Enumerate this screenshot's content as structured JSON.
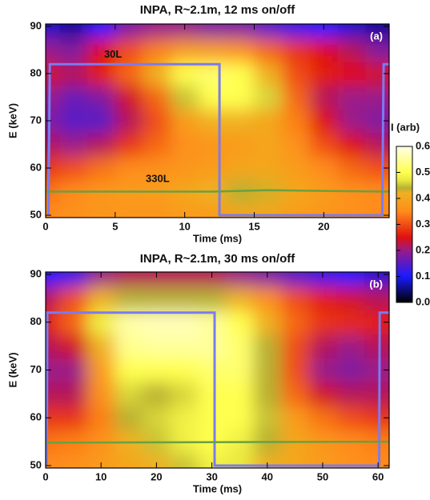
{
  "chart_data": [
    {
      "type": "heatmap",
      "title": "INPA, R~2.1m, 12 ms on/off",
      "panel_label": "(a)",
      "xlabel": "Time (ms)",
      "ylabel": "E (keV)",
      "xlim": [
        0,
        24.7
      ],
      "ylim": [
        49.5,
        90.5
      ],
      "xticks": [
        0,
        5,
        10,
        15,
        20
      ],
      "yticks": [
        50,
        60,
        70,
        80,
        90
      ],
      "x": [
        0,
        2,
        4,
        6,
        8,
        10,
        12,
        14,
        16,
        18,
        20,
        22,
        24
      ],
      "y": [
        50,
        55,
        60,
        65,
        70,
        75,
        80,
        85,
        90
      ],
      "z": [
        [
          0.35,
          0.36,
          0.37,
          0.37,
          0.37,
          0.38,
          0.38,
          0.4,
          0.4,
          0.38,
          0.37,
          0.36,
          0.35
        ],
        [
          0.33,
          0.35,
          0.37,
          0.38,
          0.38,
          0.4,
          0.42,
          0.44,
          0.43,
          0.4,
          0.38,
          0.36,
          0.35
        ],
        [
          0.28,
          0.3,
          0.33,
          0.35,
          0.36,
          0.37,
          0.38,
          0.4,
          0.4,
          0.38,
          0.35,
          0.32,
          0.3
        ],
        [
          0.22,
          0.2,
          0.22,
          0.28,
          0.32,
          0.36,
          0.37,
          0.38,
          0.4,
          0.36,
          0.3,
          0.25,
          0.22
        ],
        [
          0.18,
          0.15,
          0.15,
          0.22,
          0.3,
          0.38,
          0.42,
          0.42,
          0.4,
          0.34,
          0.25,
          0.2,
          0.18
        ],
        [
          0.2,
          0.16,
          0.18,
          0.24,
          0.32,
          0.45,
          0.5,
          0.5,
          0.46,
          0.32,
          0.22,
          0.2,
          0.2
        ],
        [
          0.24,
          0.22,
          0.26,
          0.32,
          0.42,
          0.5,
          0.52,
          0.5,
          0.42,
          0.3,
          0.26,
          0.25,
          0.24
        ],
        [
          0.2,
          0.18,
          0.25,
          0.3,
          0.34,
          0.38,
          0.38,
          0.36,
          0.32,
          0.28,
          0.25,
          0.22,
          0.18
        ],
        [
          0.08,
          0.06,
          0.1,
          0.18,
          0.2,
          0.2,
          0.18,
          0.18,
          0.15,
          0.12,
          0.1,
          0.08,
          0.06
        ]
      ],
      "series": [
        {
          "name": "30L",
          "color": "#7b7bf0",
          "x": [
            0.2,
            0.3,
            12.5,
            12.5,
            24.2,
            24.3,
            24.7
          ],
          "y": [
            50,
            82,
            82,
            50,
            50,
            82,
            82
          ]
        },
        {
          "name": "330L",
          "color": "#6aa040",
          "x": [
            0,
            12,
            16,
            24.7
          ],
          "y": [
            55,
            55,
            55.3,
            55
          ]
        }
      ],
      "colorbar": {
        "label": "I (arb)",
        "lim": [
          0,
          0.6
        ],
        "ticks": [
          {
            "value": 0,
            "label": "0.0"
          },
          0.1,
          0.2,
          0.3,
          0.4,
          0.5,
          0.6
        ],
        "colormap": [
          [
            0,
            "#000000"
          ],
          [
            0.1,
            "#1a1aff"
          ],
          [
            0.2,
            "#9a1a8a"
          ],
          [
            0.25,
            "#e01010"
          ],
          [
            0.35,
            "#ff8c1a"
          ],
          [
            0.42,
            "#f0b020"
          ],
          [
            0.44,
            "#b8b030"
          ],
          [
            0.47,
            "#e8e840"
          ],
          [
            0.5,
            "#ffff50"
          ],
          [
            0.6,
            "#ffffe8"
          ]
        ]
      }
    },
    {
      "type": "heatmap",
      "title": "INPA, R~2.1m, 30 ms on/off",
      "panel_label": "(b)",
      "xlabel": "Time (ms)",
      "ylabel": "E (keV)",
      "xlim": [
        0,
        62
      ],
      "ylim": [
        49.5,
        90.5
      ],
      "xticks": [
        0,
        10,
        20,
        30,
        40,
        50,
        60
      ],
      "yticks": [
        50,
        60,
        70,
        80,
        90
      ],
      "x": [
        0,
        5,
        10,
        15,
        20,
        25,
        30,
        35,
        40,
        45,
        50,
        55,
        60
      ],
      "y": [
        50,
        55,
        60,
        65,
        70,
        75,
        80,
        85,
        90
      ],
      "z": [
        [
          0.35,
          0.36,
          0.38,
          0.4,
          0.42,
          0.45,
          0.48,
          0.47,
          0.42,
          0.4,
          0.38,
          0.36,
          0.35
        ],
        [
          0.33,
          0.34,
          0.36,
          0.42,
          0.45,
          0.48,
          0.5,
          0.48,
          0.44,
          0.4,
          0.37,
          0.35,
          0.34
        ],
        [
          0.28,
          0.28,
          0.34,
          0.44,
          0.46,
          0.48,
          0.5,
          0.5,
          0.45,
          0.38,
          0.33,
          0.3,
          0.28
        ],
        [
          0.22,
          0.22,
          0.36,
          0.46,
          0.44,
          0.46,
          0.5,
          0.5,
          0.44,
          0.32,
          0.24,
          0.22,
          0.22
        ],
        [
          0.2,
          0.2,
          0.38,
          0.5,
          0.5,
          0.5,
          0.52,
          0.52,
          0.44,
          0.3,
          0.2,
          0.18,
          0.2
        ],
        [
          0.22,
          0.24,
          0.42,
          0.54,
          0.55,
          0.55,
          0.55,
          0.52,
          0.44,
          0.3,
          0.22,
          0.2,
          0.22
        ],
        [
          0.26,
          0.32,
          0.48,
          0.56,
          0.57,
          0.57,
          0.55,
          0.5,
          0.42,
          0.32,
          0.28,
          0.27,
          0.26
        ],
        [
          0.22,
          0.3,
          0.42,
          0.44,
          0.44,
          0.44,
          0.44,
          0.42,
          0.36,
          0.3,
          0.26,
          0.24,
          0.22
        ],
        [
          0.1,
          0.12,
          0.2,
          0.22,
          0.22,
          0.22,
          0.22,
          0.2,
          0.18,
          0.15,
          0.12,
          0.1,
          0.08
        ]
      ],
      "series": [
        {
          "color": "#7b7bf0",
          "x": [
            0.2,
            0.3,
            30.5,
            30.5,
            60.2,
            60.3,
            62
          ],
          "y": [
            50,
            82,
            82,
            50,
            50,
            82,
            82
          ]
        },
        {
          "color": "#6aa040",
          "x": [
            0,
            62
          ],
          "y": [
            54.8,
            55
          ]
        }
      ]
    }
  ]
}
